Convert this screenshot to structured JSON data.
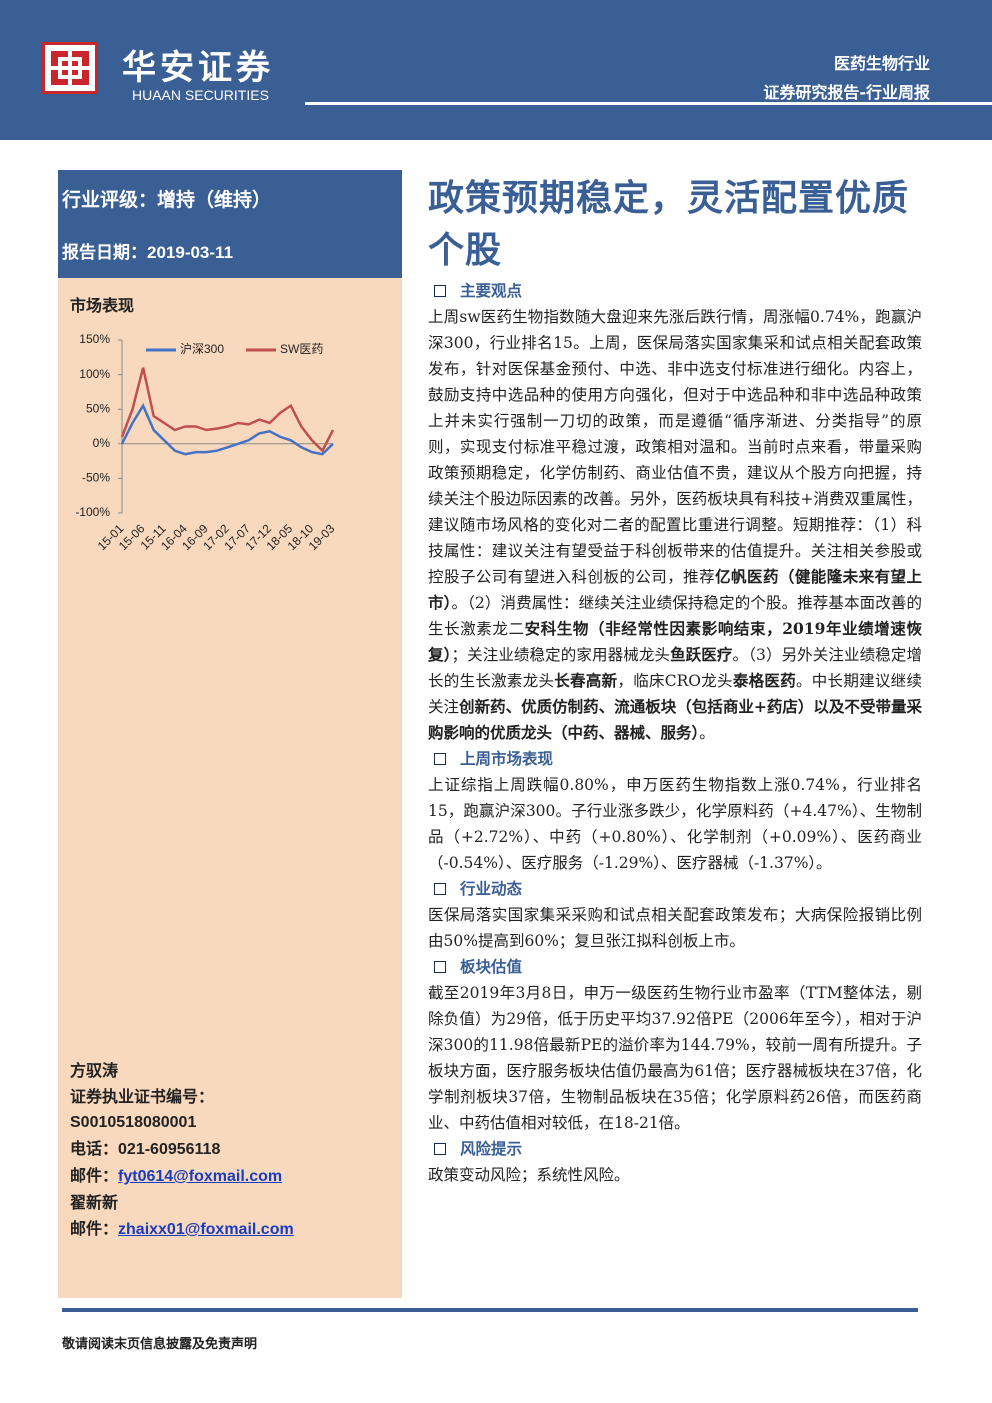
{
  "header": {
    "logo_cn": "华安证券",
    "logo_en": "HUAAN SECURITIES",
    "industry": "医药生物行业",
    "report_type": "证券研究报告-行业周报"
  },
  "sidebar": {
    "rating": "行业评级：增持（维持）",
    "date_label": "报告日期：",
    "date": "2019-03-11",
    "chart_title": "市场表现",
    "analysts": [
      {
        "name": "方驭涛",
        "cert_label": "证券执业证书编号：",
        "cert": "S0010518080001",
        "phone_label": "电话：",
        "phone": "021-60956118",
        "email_label": "邮件：",
        "email": "fyt0614@foxmail.com"
      },
      {
        "name": "翟新新",
        "email_label": "邮件：",
        "email": "zhaixx01@foxmail.com"
      }
    ]
  },
  "chart_data": {
    "type": "line",
    "categories": [
      "15-01",
      null,
      "15-06",
      null,
      "15-11",
      null,
      "16-04",
      null,
      "16-09",
      null,
      "17-02",
      null,
      "17-07",
      null,
      "17-12",
      null,
      "18-05",
      null,
      "18-10",
      null,
      "19-03"
    ],
    "series": [
      {
        "name": "沪深300",
        "color": "#4472c4",
        "values": [
          0,
          30,
          55,
          20,
          5,
          -10,
          -15,
          -12,
          -12,
          -10,
          -5,
          0,
          5,
          15,
          18,
          10,
          5,
          -5,
          -12,
          -15,
          0
        ]
      },
      {
        "name": "SW医药",
        "color": "#c0504d",
        "values": [
          10,
          50,
          110,
          40,
          30,
          20,
          25,
          25,
          20,
          22,
          25,
          30,
          28,
          35,
          30,
          45,
          55,
          25,
          5,
          -10,
          20
        ]
      }
    ],
    "ylim": [
      -100,
      150
    ],
    "yticks": [
      {
        "value": -100,
        "label": "-100%"
      },
      {
        "value": -50,
        "label": "-50%"
      },
      {
        "value": 0,
        "label": "0%"
      },
      {
        "value": 50,
        "label": "50%"
      },
      {
        "value": 100,
        "label": "100%"
      },
      {
        "value": 150,
        "label": "150%"
      }
    ],
    "legend": "top"
  },
  "title": "政策预期稳定，灵活配置优质个股",
  "sections": [
    {
      "heading": "主要观点",
      "segments": [
        {
          "text": "上周sw医药生物指数随大盘迎来先涨后跌行情，周涨幅0.74%，跑赢沪深300，行业排名15。上周，医保局落实国家集采和试点相关配套政策发布，针对医保基金预付、中选、非中选支付标准进行细化。内容上，鼓励支持中选品种的使用方向强化，但对于中选品种和非中选品种政策上并未实行强制一刀切的政策，而是遵循“循序渐进、分类指导”的原则，实现支付标准平稳过渡，政策相对温和。当前时点来看，带量采购政策预期稳定，化学仿制药、商业估值不贵，建议从个股方向把握，持续关注个股边际因素的改善。另外，医药板块具有科技+消费双重属性，建议随市场风格的变化对二者的配置比重进行调整。短期推荐：（1）科技属性：建议关注有望受益于科创板带来的估值提升。关注相关参股或控股子公司有望进入科创板的公司，推荐",
          "bold": false
        },
        {
          "text": "亿帆医药（健能隆未来有望上市）",
          "bold": true
        },
        {
          "text": "。（2）消费属性：继续关注业绩保持稳定的个股。推荐基本面改善的生长激素龙二",
          "bold": false
        },
        {
          "text": "安科生物（非经常性因素影响结束，2019年业绩增速恢复）",
          "bold": true
        },
        {
          "text": "；关注业绩稳定的家用器械龙头",
          "bold": false
        },
        {
          "text": "鱼跃医疗",
          "bold": true
        },
        {
          "text": "。（3）另外关注业绩稳定增长的生长激素龙头",
          "bold": false
        },
        {
          "text": "长春高新",
          "bold": true
        },
        {
          "text": "，临床CRO龙头",
          "bold": false
        },
        {
          "text": "泰格医药",
          "bold": true
        },
        {
          "text": "。中长期建议继续关注",
          "bold": false
        },
        {
          "text": "创新药、优质仿制药、流通板块（包括商业+药店）以及不受带量采购影响的优质龙头（中药、器械、服务）",
          "bold": true
        },
        {
          "text": "。",
          "bold": false
        }
      ]
    },
    {
      "heading": "上周市场表现",
      "segments": [
        {
          "text": "上证综指上周跌幅0.80%，申万医药生物指数上涨0.74%，行业排名15，跑赢沪深300。子行业涨多跌少，化学原料药（+4.47%）、生物制品（+2.72%）、中药（+0.80%）、化学制剂（+0.09%）、医药商业（-0.54%）、医疗服务（-1.29%）、医疗器械（-1.37%）。",
          "bold": false
        }
      ]
    },
    {
      "heading": "行业动态",
      "segments": [
        {
          "text": "医保局落实国家集采采购和试点相关配套政策发布；大病保险报销比例由50%提高到60%；复旦张江拟科创板上市。",
          "bold": false
        }
      ]
    },
    {
      "heading": "板块估值",
      "segments": [
        {
          "text": "截至2019年3月8日，申万一级医药生物行业市盈率（TTM整体法，剔除负值）为29倍，低于历史平均37.92倍PE（2006年至今），相对于沪深300的11.98倍最新PE的溢价率为144.79%，较前一周有所提升。子板块方面，医疗服务板块估值仍最高为61倍；医疗器械板块在37倍，化学制剂板块37倍，生物制品板块在35倍；化学原料药26倍，而医药商业、中药估值相对较低，在18-21倍。",
          "bold": false
        }
      ]
    },
    {
      "heading": "风险提示",
      "segments": [
        {
          "text": "政策变动风险；系统性风险。",
          "bold": false
        }
      ]
    }
  ],
  "footer": "敬请阅读末页信息披露及免责声明"
}
